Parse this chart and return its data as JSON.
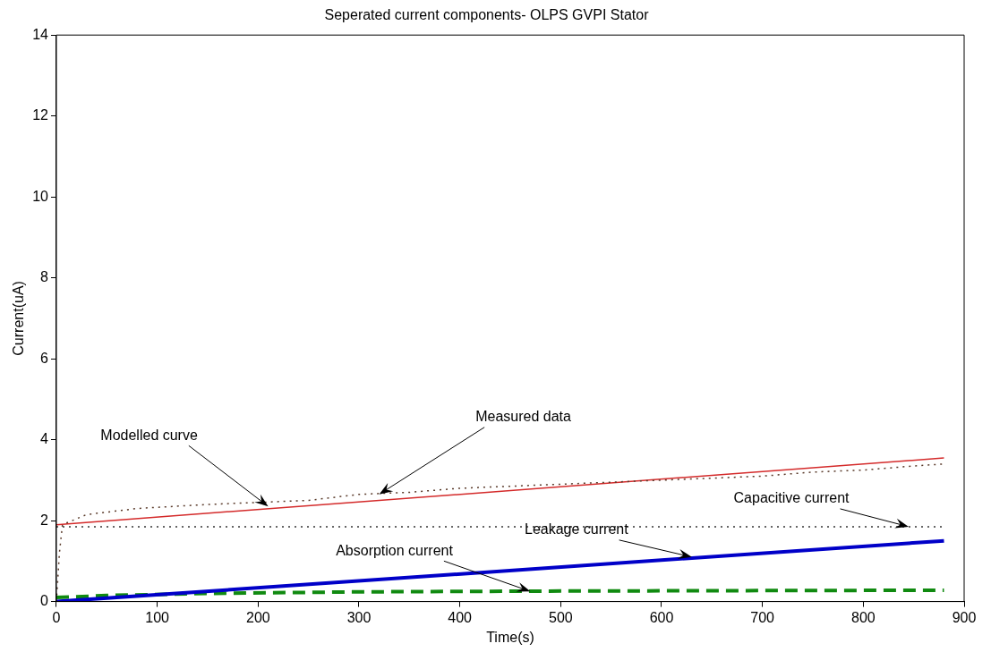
{
  "chart_data": {
    "type": "line",
    "title": "Seperated current components- OLPS GVPI Stator",
    "xlabel": "Time(s)",
    "ylabel": "Current(uA)",
    "xlim": [
      0,
      900
    ],
    "xticks": [
      0,
      100,
      200,
      300,
      400,
      500,
      600,
      700,
      800,
      900
    ],
    "ylim": [
      0,
      14
    ],
    "yticks": [
      0,
      2,
      4,
      6,
      8,
      10,
      12,
      14
    ],
    "grid": false,
    "legend": false,
    "marker": "none",
    "series": [
      {
        "color": "#5a3a2a",
        "line_style": "dotted",
        "x": [
          0,
          3,
          6,
          30,
          80,
          150,
          250,
          300,
          350,
          400,
          450,
          500,
          550,
          600,
          650,
          700,
          750,
          800,
          850,
          880
        ],
        "values": [
          0,
          1.2,
          1.9,
          2.15,
          2.3,
          2.4,
          2.5,
          2.65,
          2.7,
          2.8,
          2.85,
          2.9,
          2.95,
          3.0,
          3.05,
          3.1,
          3.2,
          3.25,
          3.35,
          3.4
        ]
      },
      {
        "color": "#d42a2a",
        "line_style": "solid",
        "x": [
          0,
          880
        ],
        "values": [
          1.9,
          3.55
        ]
      },
      {
        "color": "#333333",
        "line_style": "dotted",
        "x": [
          0,
          880
        ],
        "values": [
          1.85,
          1.85
        ]
      },
      {
        "color": "#0000c8",
        "line_style": "solid",
        "x": [
          0,
          880
        ],
        "values": [
          0,
          1.5
        ]
      },
      {
        "color": "#108a10",
        "line_style": "dashed",
        "x": [
          0,
          50,
          150,
          300,
          500,
          880
        ],
        "values": [
          0.1,
          0.15,
          0.2,
          0.24,
          0.26,
          0.28
        ]
      }
    ],
    "annotations": [
      {
        "text": "Modelled curve",
        "x": 210,
        "y": 2.35
      },
      {
        "text": "Measured data",
        "x": 320,
        "y": 2.65
      },
      {
        "text": "Capacitive current",
        "x": 845,
        "y": 1.85
      },
      {
        "text": "Leakage current",
        "x": 630,
        "y": 1.1
      },
      {
        "text": "Absorption current",
        "x": 470,
        "y": 0.25
      }
    ]
  }
}
